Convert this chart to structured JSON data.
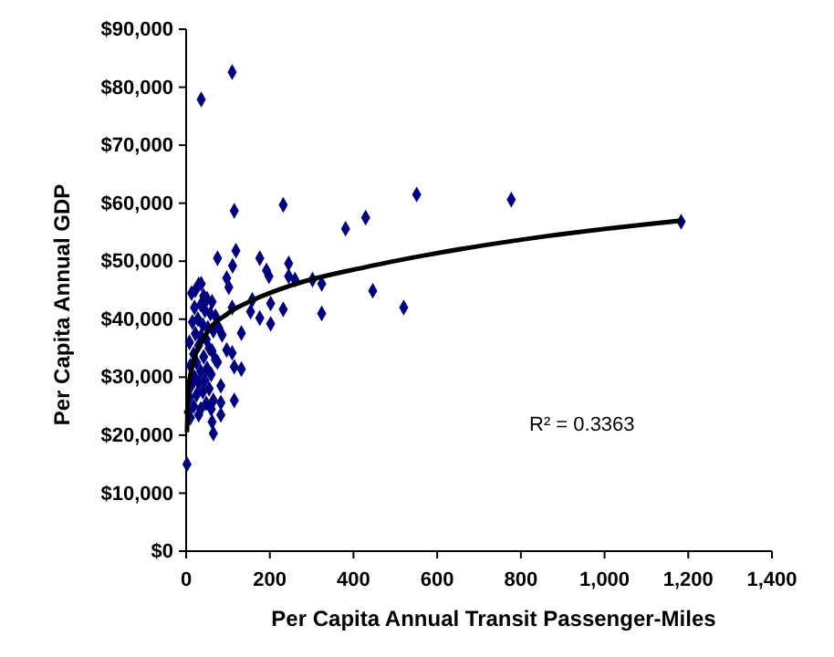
{
  "chart_data": {
    "type": "scatter",
    "xlabel": "Per Capita Annual Transit Passenger-Miles",
    "ylabel": "Per Capita Annual GDP",
    "xlim": [
      0,
      1400
    ],
    "xticks": [
      0,
      200,
      400,
      600,
      800,
      {
        "value": 1000,
        "label": "1,000"
      },
      {
        "value": 1200,
        "label": "1,200"
      },
      {
        "value": 1400,
        "label": "1,400"
      }
    ],
    "ylim": [
      0,
      90000
    ],
    "yticks": [
      {
        "value": 0,
        "label": "$0"
      },
      {
        "value": 10000,
        "label": "$10,000"
      },
      {
        "value": 20000,
        "label": "$20,000"
      },
      {
        "value": 30000,
        "label": "$30,000"
      },
      {
        "value": 40000,
        "label": "$40,000"
      },
      {
        "value": 50000,
        "label": "$50,000"
      },
      {
        "value": 60000,
        "label": "$60,000"
      },
      {
        "value": 70000,
        "label": "$70,000"
      },
      {
        "value": 80000,
        "label": "$80,000"
      },
      {
        "value": 90000,
        "label": "$90,000"
      }
    ],
    "grid": false,
    "annotations": [
      "R² = 0.3363"
    ],
    "series": [
      {
        "color": "#000080",
        "marker": "diamond",
        "x": [
          110,
          36,
          115,
          232,
          381,
          429,
          446,
          75,
          119,
          111,
          176,
          192,
          198,
          245,
          245,
          260,
          302,
          324,
          36,
          97,
          102,
          158,
          202,
          232,
          551,
          777,
          1183,
          520,
          324,
          110,
          154,
          176,
          202,
          132,
          86,
          97,
          110,
          75,
          115,
          132,
          83,
          115,
          83,
          83,
          60,
          62,
          65,
          2,
          9,
          13,
          22,
          30,
          42,
          50,
          62,
          35,
          20,
          45,
          58,
          70,
          28,
          15,
          40,
          52,
          65,
          78,
          22,
          35,
          48,
          8,
          30,
          55,
          62,
          18,
          42,
          70,
          25,
          10,
          50,
          35,
          60,
          20,
          45,
          30,
          12,
          55,
          40,
          25,
          8,
          65,
          48,
          18,
          35,
          5,
          30,
          10
        ],
        "values": [
          82600,
          77900,
          58700,
          59700,
          55600,
          57500,
          44900,
          50500,
          51800,
          49200,
          50500,
          48400,
          47400,
          49600,
          47400,
          46800,
          46800,
          46100,
          46100,
          47100,
          45500,
          43300,
          42700,
          41700,
          61500,
          60600,
          56800,
          42000,
          41000,
          42000,
          41300,
          40200,
          39200,
          37600,
          37300,
          34700,
          34200,
          32600,
          31800,
          31400,
          28500,
          26000,
          25600,
          23500,
          24500,
          22300,
          20300,
          15000,
          23000,
          44500,
          45000,
          46000,
          44000,
          43500,
          43000,
          42500,
          42000,
          41500,
          41000,
          40500,
          40000,
          39500,
          39000,
          38500,
          38000,
          38500,
          37500,
          37000,
          36500,
          36000,
          35500,
          35000,
          34500,
          34000,
          33500,
          33000,
          32500,
          32000,
          31500,
          31000,
          30500,
          30000,
          29500,
          29000,
          28500,
          28000,
          27500,
          27000,
          26500,
          26000,
          25500,
          25000,
          24500,
          24000,
          23500,
          23000
        ]
      },
      {
        "type": "line",
        "color": "#000000",
        "marker": "none",
        "line_style": "solid",
        "x": [
          2,
          5,
          15,
          40,
          100,
          160,
          250,
          430,
          570,
          860,
          1183
        ],
        "values": [
          20500,
          27500,
          32000,
          36500,
          41000,
          43300,
          45800,
          49000,
          51000,
          54300,
          57000
        ]
      }
    ]
  }
}
